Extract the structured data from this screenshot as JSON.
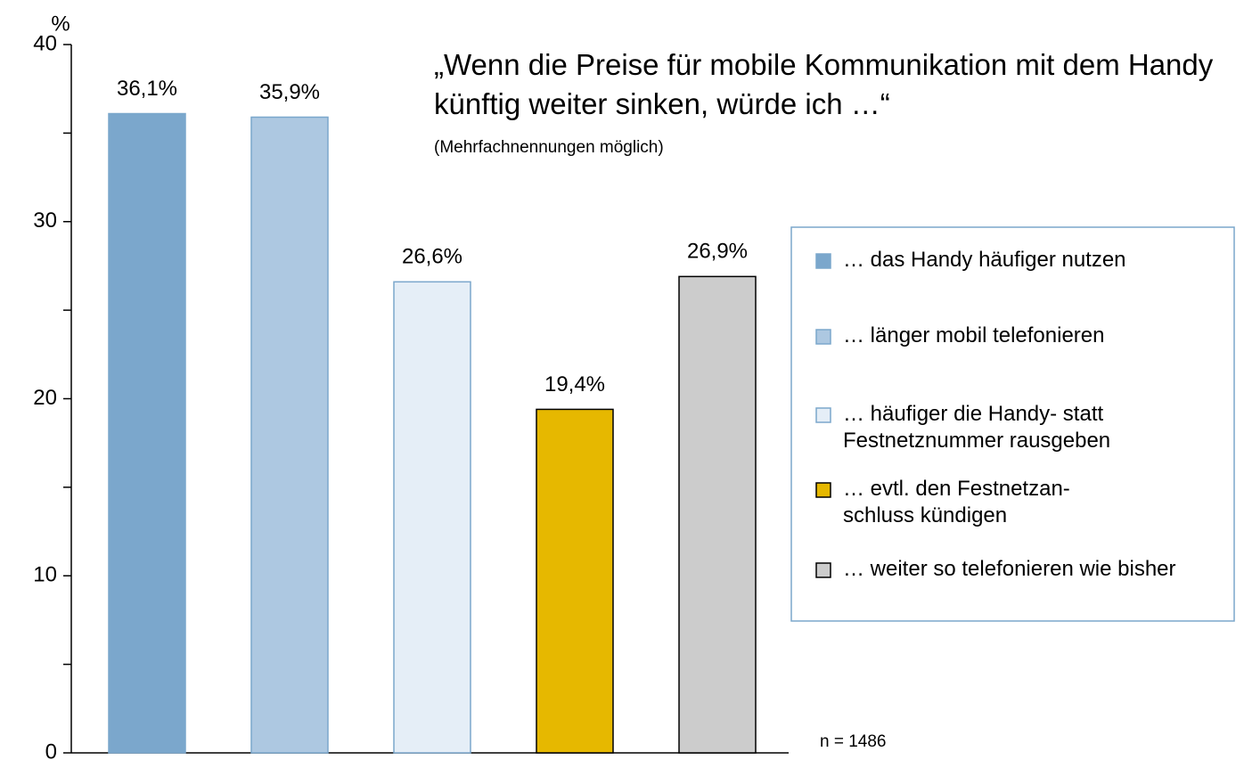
{
  "chart_data": {
    "type": "bar",
    "title": "„Wenn die Preise für mobile Kommunikation mit dem Handy künftig weiter sinken, würde ich …“",
    "subtitle": "(Mehrfachnennungen möglich)",
    "y_label": "%",
    "annotation": "n = 1486",
    "categories": [
      "… das Handy häufiger nutzen",
      "… länger mobil telefonieren",
      "… häufiger die Handy- statt Festnetznummer rausgeben",
      "… evtl. den Festnetzan-schluss kündigen",
      "… weiter so telefonieren wie bisher"
    ],
    "values": [
      36.1,
      35.9,
      26.6,
      19.4,
      26.9
    ],
    "value_labels": [
      "36,1%",
      "35,9%",
      "26,6%",
      "19,4%",
      "26,9%"
    ],
    "colors": [
      "#7ba7cc",
      "#adc8e1",
      "#e5eef7",
      "#e6b800",
      "#cccccc"
    ],
    "ylim": [
      0,
      40
    ],
    "yticks": [
      0,
      10,
      20,
      30,
      40
    ],
    "yticks_minor": [
      5,
      15,
      25,
      35
    ],
    "legend": "right"
  }
}
